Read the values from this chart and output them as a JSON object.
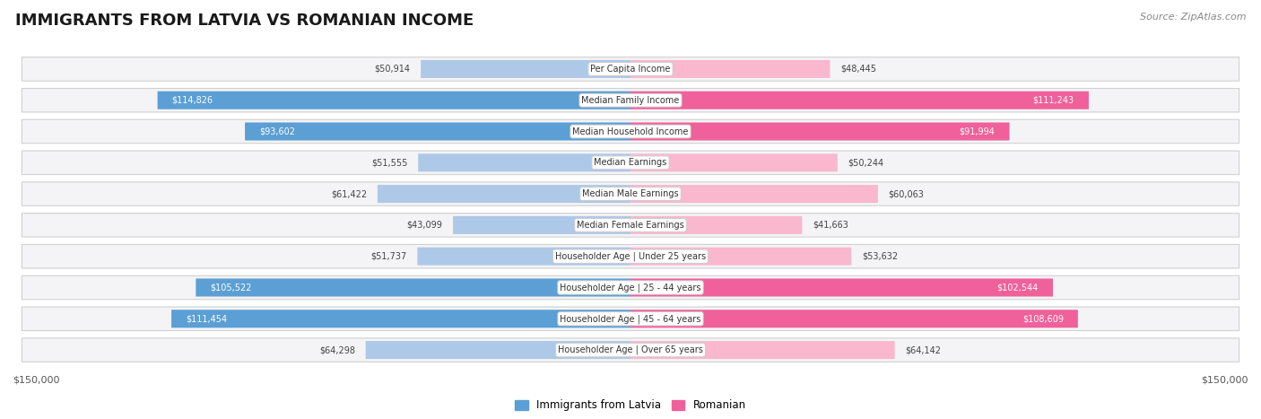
{
  "title": "IMMIGRANTS FROM LATVIA VS ROMANIAN INCOME",
  "source": "Source: ZipAtlas.com",
  "categories": [
    "Per Capita Income",
    "Median Family Income",
    "Median Household Income",
    "Median Earnings",
    "Median Male Earnings",
    "Median Female Earnings",
    "Householder Age | Under 25 years",
    "Householder Age | 25 - 44 years",
    "Householder Age | 45 - 64 years",
    "Householder Age | Over 65 years"
  ],
  "latvia_values": [
    50914,
    114826,
    93602,
    51555,
    61422,
    43099,
    51737,
    105522,
    111454,
    64298
  ],
  "romanian_values": [
    48445,
    111243,
    91994,
    50244,
    60063,
    41663,
    53632,
    102544,
    108609,
    64142
  ],
  "max_value": 150000,
  "latvia_color_light": "#aec9e8",
  "latvia_color_dark": "#5b9fd4",
  "romanian_color_light": "#f9b8ce",
  "romanian_color_dark": "#f0609a",
  "high_threshold": 75000,
  "title_fontsize": 13,
  "legend_latvia": "Immigrants from Latvia",
  "legend_romanian": "Romanian"
}
